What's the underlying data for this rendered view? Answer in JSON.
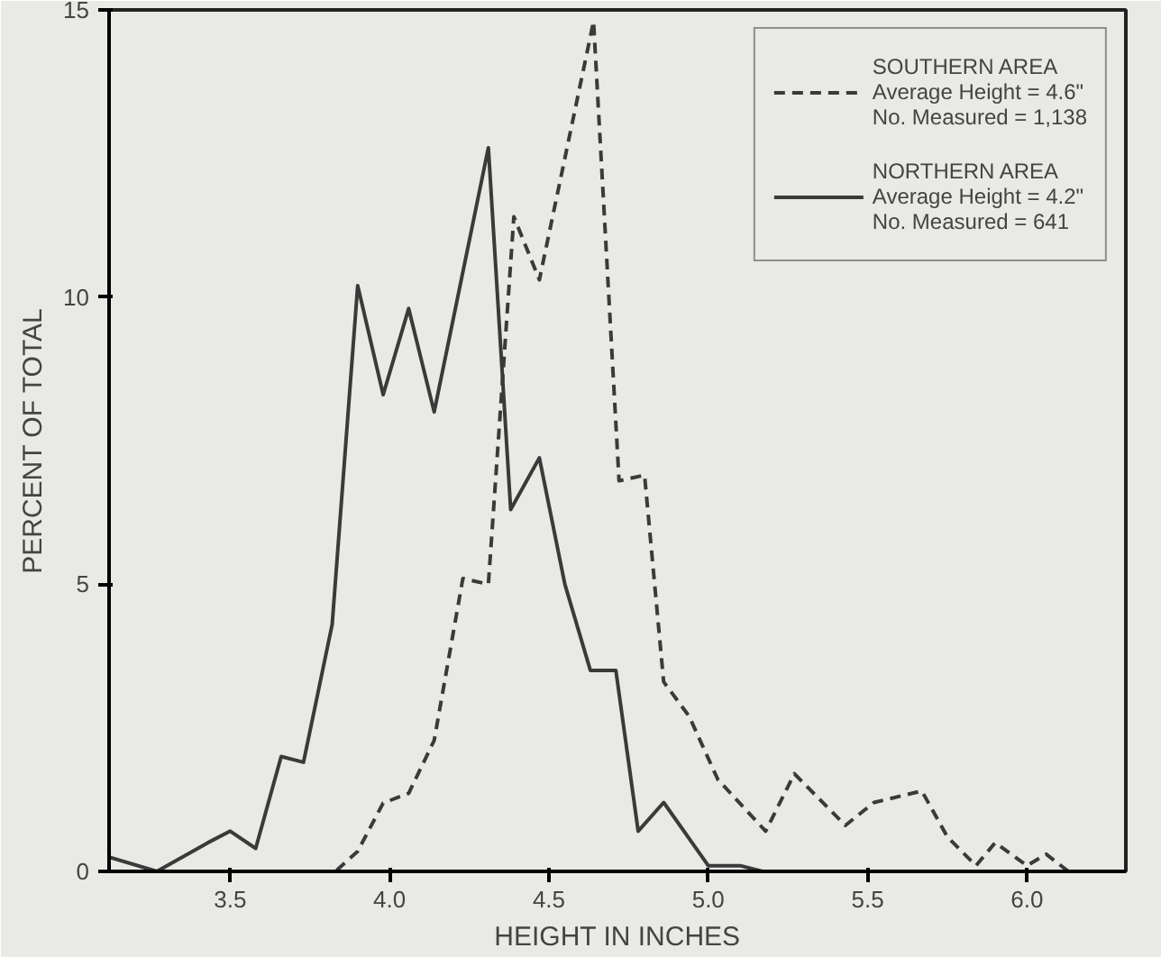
{
  "chart_data": {
    "type": "line",
    "xlabel": "HEIGHT IN INCHES",
    "ylabel": "PERCENT OF TOTAL",
    "xlim": [
      3.12,
      6.31
    ],
    "ylim": [
      0,
      15
    ],
    "xticks": [
      {
        "value": 3.5,
        "label": "3.5"
      },
      {
        "value": 4.0,
        "label": "4.0"
      },
      {
        "value": 4.5,
        "label": "4.5"
      },
      {
        "value": 5.0,
        "label": "5.0"
      },
      {
        "value": 5.5,
        "label": "5.5"
      },
      {
        "value": 6.0,
        "label": "6.0"
      }
    ],
    "yticks": [
      0,
      5,
      10,
      15
    ],
    "grid": false,
    "legend": "top right",
    "marker": "none",
    "series": [
      {
        "name": "SOUTHERN AREA\nAverage Height = 4.6\"\nNo. Measured = 1,138",
        "color": "#3a3a3a",
        "line_style": "dashed",
        "x": [
          3.27,
          3.83,
          3.9,
          3.98,
          4.06,
          4.14,
          4.23,
          4.31,
          4.39,
          4.47,
          4.64,
          4.72,
          4.8,
          4.86,
          4.94,
          5.03,
          5.18,
          5.27,
          5.43,
          5.52,
          5.67,
          5.75,
          5.84,
          5.9,
          6.0,
          6.06,
          6.13
        ],
        "values": [
          0,
          0,
          0.35,
          1.19,
          1.36,
          2.28,
          5.1,
          5.0,
          11.4,
          10.3,
          14.8,
          6.8,
          6.9,
          3.3,
          2.7,
          1.6,
          0.7,
          1.7,
          0.8,
          1.2,
          1.4,
          0.6,
          0.1,
          0.5,
          0.1,
          0.3,
          0
        ]
      },
      {
        "name": "NORTHERN AREA\nAverage Height = 4.2\"\nNo. Measured = 641",
        "color": "#3a3a3a",
        "line_style": "solid",
        "x": [
          3.12,
          3.27,
          3.43,
          3.5,
          3.58,
          3.66,
          3.73,
          3.82,
          3.9,
          3.98,
          4.06,
          4.14,
          4.31,
          4.38,
          4.47,
          4.55,
          4.63,
          4.71,
          4.78,
          4.86,
          5.0,
          5.1,
          5.17
        ],
        "values": [
          0.25,
          0,
          0.5,
          0.7,
          0.4,
          2.0,
          1.9,
          4.3,
          10.2,
          8.3,
          9.8,
          8.0,
          12.6,
          6.3,
          7.2,
          5.0,
          3.5,
          3.5,
          0.7,
          1.2,
          0.1,
          0.1,
          0
        ]
      }
    ]
  }
}
